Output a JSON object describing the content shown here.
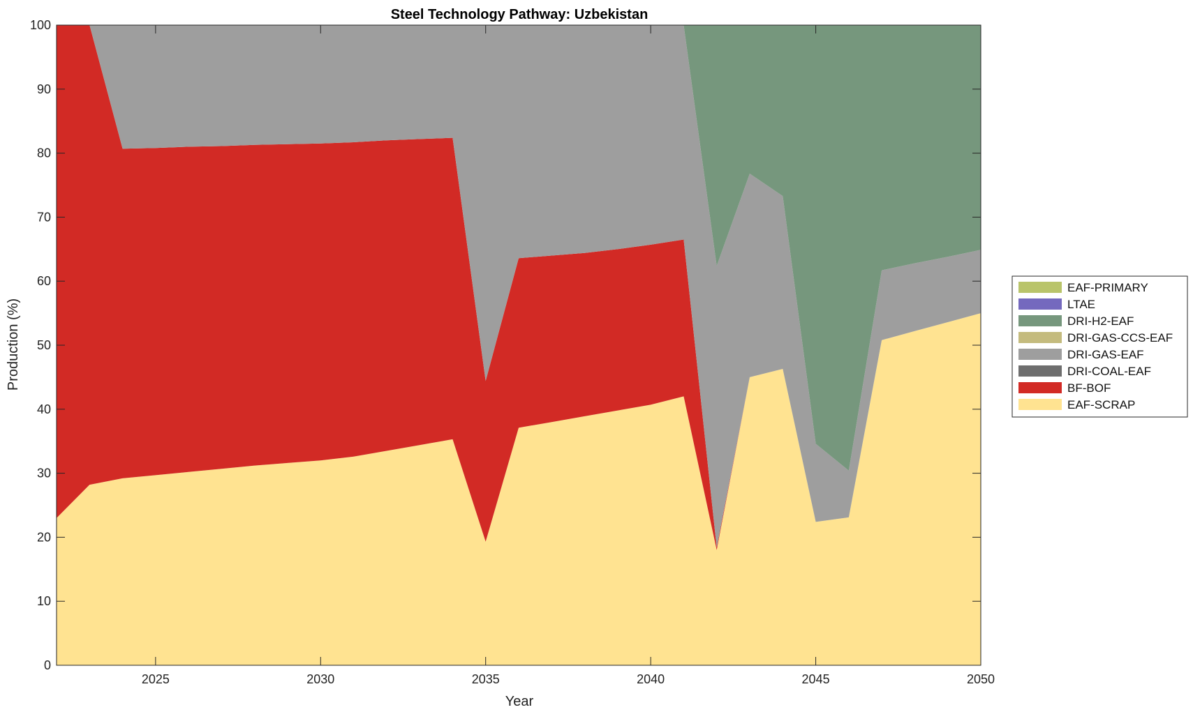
{
  "chart_data": {
    "type": "area",
    "stacked": true,
    "title": "Steel Technology Pathway: Uzbekistan",
    "xlabel": "Year",
    "ylabel": "Production (%)",
    "xlim": [
      2022,
      2050
    ],
    "ylim": [
      0,
      100
    ],
    "xticks": [
      2025,
      2030,
      2035,
      2040,
      2045,
      2050
    ],
    "yticks": [
      0,
      10,
      20,
      30,
      40,
      50,
      60,
      70,
      80,
      90,
      100
    ],
    "grid": false,
    "legend_position": "right",
    "x": [
      2022,
      2023,
      2024,
      2025,
      2026,
      2027,
      2028,
      2029,
      2030,
      2031,
      2032,
      2033,
      2034,
      2035,
      2036,
      2037,
      2038,
      2039,
      2040,
      2041,
      2042,
      2043,
      2044,
      2045,
      2046,
      2047,
      2048,
      2049,
      2050
    ],
    "series": [
      {
        "name": "EAF-SCRAP",
        "color": "#FFE391",
        "values": [
          23.0,
          28.2,
          29.2,
          29.7,
          30.2,
          30.7,
          31.2,
          31.6,
          32.0,
          32.6,
          33.5,
          34.4,
          35.3,
          19.3,
          37.1,
          38.0,
          38.9,
          39.8,
          40.7,
          42.0,
          18.0,
          45.0,
          46.3,
          22.4,
          23.1,
          50.8,
          52.2,
          53.6,
          55.0
        ]
      },
      {
        "name": "BF-BOF",
        "color": "#D22A25",
        "values": [
          77.0,
          71.8,
          51.5,
          51.1,
          50.8,
          50.4,
          50.1,
          49.8,
          49.5,
          49.1,
          48.5,
          47.8,
          47.1,
          25.1,
          26.5,
          26.0,
          25.5,
          25.2,
          25.0,
          24.5,
          0.4,
          0.0,
          0.0,
          0.0,
          0.0,
          0.0,
          0.0,
          0.0,
          0.0
        ]
      },
      {
        "name": "DRI-COAL-EAF",
        "color": "#6E6E6E",
        "values": [
          0,
          0,
          0,
          0,
          0,
          0,
          0,
          0,
          0,
          0,
          0,
          0,
          0,
          0,
          0,
          0,
          0,
          0,
          0,
          0,
          0,
          0,
          0,
          0,
          0,
          0,
          0,
          0,
          0
        ]
      },
      {
        "name": "DRI-GAS-EAF",
        "color": "#9E9E9E",
        "values": [
          0.0,
          0.0,
          19.3,
          19.2,
          19.0,
          18.9,
          18.7,
          18.6,
          18.5,
          18.3,
          18.0,
          17.8,
          17.6,
          55.6,
          36.4,
          36.0,
          35.6,
          35.0,
          34.3,
          33.5,
          44.0,
          31.8,
          27.0,
          12.2,
          7.3,
          10.9,
          10.6,
          10.2,
          9.9
        ]
      },
      {
        "name": "DRI-GAS-CCS-EAF",
        "color": "#C4BB7E",
        "values": [
          0,
          0,
          0,
          0,
          0,
          0,
          0,
          0,
          0,
          0,
          0,
          0,
          0,
          0,
          0,
          0,
          0,
          0,
          0,
          0,
          0,
          0,
          0,
          0,
          0,
          0,
          0,
          0,
          0
        ]
      },
      {
        "name": "DRI-H2-EAF",
        "color": "#76977D",
        "values": [
          0.0,
          0.0,
          0.0,
          0.0,
          0.0,
          0.0,
          0.0,
          0.0,
          0.0,
          0.0,
          0.0,
          0.0,
          0.0,
          0.0,
          0.0,
          0.0,
          0.0,
          0.0,
          0.0,
          0.0,
          37.6,
          23.2,
          26.7,
          65.4,
          69.6,
          38.3,
          37.2,
          36.2,
          35.1
        ]
      },
      {
        "name": "LTAE",
        "color": "#7469BE",
        "values": [
          0,
          0,
          0,
          0,
          0,
          0,
          0,
          0,
          0,
          0,
          0,
          0,
          0,
          0,
          0,
          0,
          0,
          0,
          0,
          0,
          0,
          0,
          0,
          0,
          0,
          0,
          0,
          0,
          0
        ]
      },
      {
        "name": "EAF-PRIMARY",
        "color": "#B9C46A",
        "values": [
          0,
          0,
          0,
          0,
          0,
          0,
          0,
          0,
          0,
          0,
          0,
          0,
          0,
          0,
          0,
          0,
          0,
          0,
          0,
          0,
          0,
          0,
          0,
          0,
          0,
          0,
          0,
          0,
          0
        ]
      }
    ],
    "legend_order": [
      "EAF-PRIMARY",
      "LTAE",
      "DRI-H2-EAF",
      "DRI-GAS-CCS-EAF",
      "DRI-GAS-EAF",
      "DRI-COAL-EAF",
      "BF-BOF",
      "EAF-SCRAP"
    ]
  }
}
